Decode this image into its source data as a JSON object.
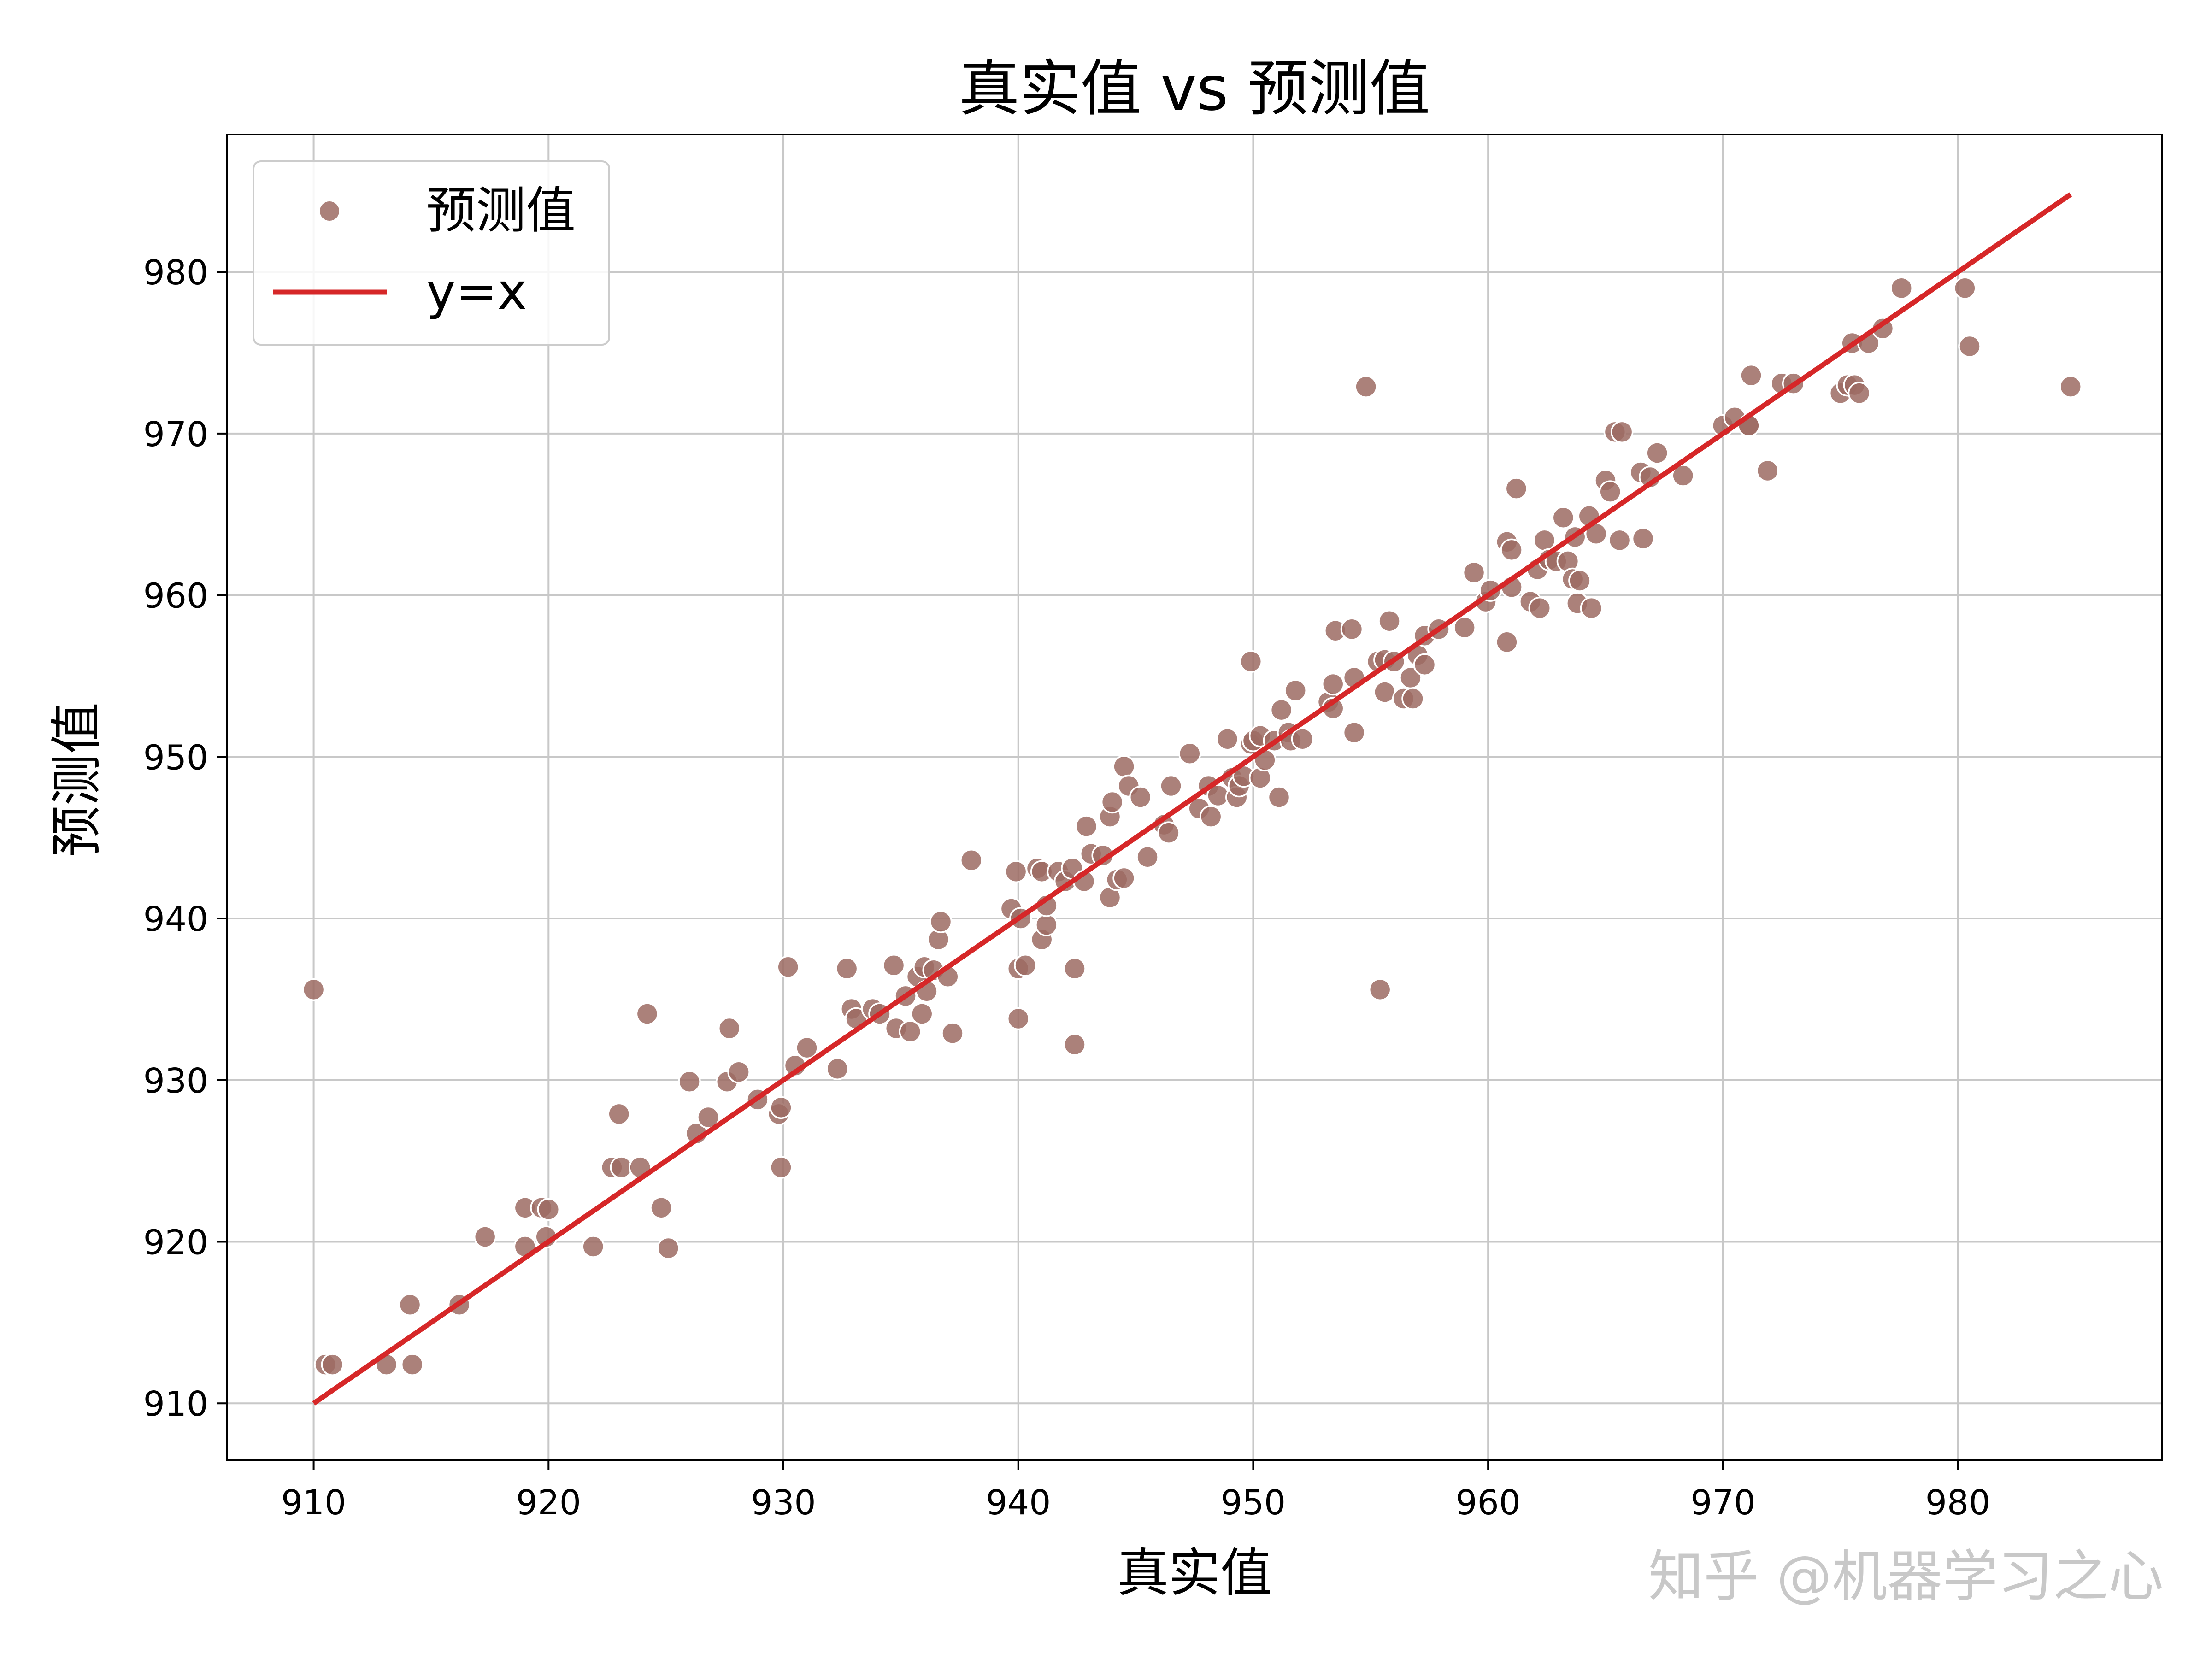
{
  "chart_data": {
    "type": "scatter",
    "title": "真实值 vs 预测值",
    "xlabel": "真实值",
    "ylabel": "预测值",
    "xlim": [
      906.3,
      988.7
    ],
    "ylim": [
      906.5,
      988.5
    ],
    "xticks": [
      910,
      920,
      930,
      940,
      950,
      960,
      970,
      980
    ],
    "yticks": [
      910,
      920,
      930,
      940,
      950,
      960,
      970,
      980
    ],
    "grid": true,
    "legend_position": "top-left",
    "series": [
      {
        "name": "预测值",
        "kind": "scatter",
        "color": "#9c6b63",
        "points": [
          [
            910.0,
            935.6
          ],
          [
            910.5,
            912.4
          ],
          [
            910.8,
            912.4
          ],
          [
            913.1,
            912.4
          ],
          [
            914.1,
            916.1
          ],
          [
            914.2,
            912.4
          ],
          [
            916.2,
            916.1
          ],
          [
            917.3,
            920.3
          ],
          [
            919.0,
            922.1
          ],
          [
            919.0,
            919.7
          ],
          [
            919.7,
            922.1
          ],
          [
            920.0,
            922.0
          ],
          [
            919.9,
            920.3
          ],
          [
            921.9,
            919.7
          ],
          [
            922.7,
            924.6
          ],
          [
            923.0,
            927.9
          ],
          [
            923.1,
            924.6
          ],
          [
            923.9,
            924.6
          ],
          [
            924.2,
            934.1
          ],
          [
            924.8,
            922.1
          ],
          [
            925.1,
            919.6
          ],
          [
            926.0,
            929.9
          ],
          [
            926.3,
            926.7
          ],
          [
            926.8,
            927.7
          ],
          [
            927.6,
            929.9
          ],
          [
            927.7,
            933.2
          ],
          [
            928.1,
            930.5
          ],
          [
            928.9,
            928.8
          ],
          [
            929.8,
            927.9
          ],
          [
            929.9,
            928.3
          ],
          [
            929.9,
            924.6
          ],
          [
            930.2,
            937.0
          ],
          [
            930.5,
            930.9
          ],
          [
            931.0,
            932.0
          ],
          [
            932.3,
            930.7
          ],
          [
            932.7,
            936.9
          ],
          [
            932.9,
            934.4
          ],
          [
            933.1,
            933.8
          ],
          [
            933.8,
            934.4
          ],
          [
            934.1,
            934.1
          ],
          [
            934.7,
            937.1
          ],
          [
            934.8,
            933.2
          ],
          [
            935.2,
            935.2
          ],
          [
            935.4,
            933.0
          ],
          [
            935.7,
            936.4
          ],
          [
            935.9,
            934.1
          ],
          [
            936.0,
            937.0
          ],
          [
            936.1,
            935.5
          ],
          [
            936.4,
            936.8
          ],
          [
            936.6,
            938.7
          ],
          [
            936.7,
            939.8
          ],
          [
            937.0,
            936.4
          ],
          [
            937.2,
            932.9
          ],
          [
            938.0,
            943.6
          ],
          [
            939.7,
            940.6
          ],
          [
            939.9,
            942.9
          ],
          [
            940.0,
            936.9
          ],
          [
            940.0,
            933.8
          ],
          [
            940.1,
            940.0
          ],
          [
            940.3,
            937.1
          ],
          [
            940.8,
            943.1
          ],
          [
            941.0,
            942.9
          ],
          [
            941.0,
            938.7
          ],
          [
            941.2,
            939.6
          ],
          [
            941.2,
            940.8
          ],
          [
            941.7,
            942.9
          ],
          [
            942.0,
            942.3
          ],
          [
            942.3,
            943.1
          ],
          [
            942.4,
            936.9
          ],
          [
            942.4,
            932.2
          ],
          [
            942.8,
            942.3
          ],
          [
            942.9,
            945.7
          ],
          [
            943.1,
            944.0
          ],
          [
            943.6,
            943.9
          ],
          [
            943.9,
            941.3
          ],
          [
            943.9,
            946.3
          ],
          [
            944.0,
            947.2
          ],
          [
            944.2,
            942.4
          ],
          [
            944.5,
            942.5
          ],
          [
            944.5,
            949.4
          ],
          [
            944.7,
            948.2
          ],
          [
            945.2,
            947.5
          ],
          [
            945.5,
            943.8
          ],
          [
            946.2,
            945.8
          ],
          [
            946.4,
            945.3
          ],
          [
            946.5,
            948.2
          ],
          [
            947.3,
            950.2
          ],
          [
            947.7,
            946.8
          ],
          [
            948.1,
            948.2
          ],
          [
            948.2,
            946.3
          ],
          [
            948.5,
            947.6
          ],
          [
            948.9,
            951.1
          ],
          [
            949.1,
            948.7
          ],
          [
            949.3,
            947.5
          ],
          [
            949.4,
            948.2
          ],
          [
            949.6,
            948.8
          ],
          [
            949.9,
            950.8
          ],
          [
            949.9,
            955.9
          ],
          [
            950.0,
            951.0
          ],
          [
            950.3,
            948.7
          ],
          [
            950.3,
            951.3
          ],
          [
            950.5,
            949.8
          ],
          [
            950.9,
            951.0
          ],
          [
            951.1,
            947.5
          ],
          [
            951.2,
            952.9
          ],
          [
            951.5,
            951.5
          ],
          [
            951.6,
            951.0
          ],
          [
            951.8,
            954.1
          ],
          [
            952.1,
            951.1
          ],
          [
            953.2,
            953.4
          ],
          [
            953.4,
            953.0
          ],
          [
            953.4,
            954.5
          ],
          [
            953.5,
            957.8
          ],
          [
            954.2,
            957.9
          ],
          [
            954.3,
            951.5
          ],
          [
            954.3,
            954.9
          ],
          [
            954.8,
            972.9
          ],
          [
            955.3,
            955.9
          ],
          [
            955.4,
            935.6
          ],
          [
            955.6,
            954.0
          ],
          [
            955.6,
            956.0
          ],
          [
            955.8,
            958.4
          ],
          [
            956.0,
            955.9
          ],
          [
            956.4,
            953.6
          ],
          [
            956.7,
            954.9
          ],
          [
            956.8,
            953.6
          ],
          [
            957.0,
            956.3
          ],
          [
            957.3,
            955.7
          ],
          [
            957.3,
            957.5
          ],
          [
            957.9,
            957.9
          ],
          [
            959.0,
            958.0
          ],
          [
            959.4,
            961.4
          ],
          [
            959.9,
            959.6
          ],
          [
            960.1,
            960.3
          ],
          [
            960.8,
            963.3
          ],
          [
            960.8,
            957.1
          ],
          [
            961.0,
            962.8
          ],
          [
            961.0,
            960.5
          ],
          [
            961.2,
            966.6
          ],
          [
            961.8,
            959.6
          ],
          [
            962.1,
            961.6
          ],
          [
            962.2,
            959.2
          ],
          [
            962.4,
            963.4
          ],
          [
            962.6,
            962.2
          ],
          [
            962.9,
            962.1
          ],
          [
            963.2,
            964.8
          ],
          [
            963.4,
            962.1
          ],
          [
            963.6,
            961.0
          ],
          [
            963.7,
            963.6
          ],
          [
            963.8,
            959.5
          ],
          [
            963.9,
            960.9
          ],
          [
            964.3,
            964.9
          ],
          [
            964.4,
            959.2
          ],
          [
            964.6,
            963.8
          ],
          [
            965.0,
            967.1
          ],
          [
            965.2,
            966.4
          ],
          [
            965.4,
            970.1
          ],
          [
            965.6,
            963.4
          ],
          [
            965.7,
            970.1
          ],
          [
            966.5,
            967.6
          ],
          [
            966.6,
            963.5
          ],
          [
            966.9,
            967.3
          ],
          [
            967.2,
            968.8
          ],
          [
            968.3,
            967.4
          ],
          [
            970.0,
            970.5
          ],
          [
            970.5,
            971.0
          ],
          [
            971.1,
            970.5
          ],
          [
            971.1,
            970.5
          ],
          [
            971.2,
            973.6
          ],
          [
            971.9,
            967.7
          ],
          [
            972.5,
            973.1
          ],
          [
            973.0,
            973.1
          ],
          [
            975.0,
            972.5
          ],
          [
            975.3,
            973.0
          ],
          [
            975.5,
            975.6
          ],
          [
            975.6,
            973.0
          ],
          [
            975.8,
            972.5
          ],
          [
            976.2,
            975.6
          ],
          [
            976.8,
            976.5
          ],
          [
            977.6,
            979.0
          ],
          [
            980.3,
            979.0
          ],
          [
            980.5,
            975.4
          ],
          [
            984.8,
            972.9
          ]
        ]
      },
      {
        "name": "y=x",
        "kind": "line",
        "color": "#d62728",
        "points": [
          [
            910.0,
            910.0
          ],
          [
            984.8,
            984.8
          ]
        ]
      }
    ]
  },
  "watermark": "知乎 @机器学习之心"
}
